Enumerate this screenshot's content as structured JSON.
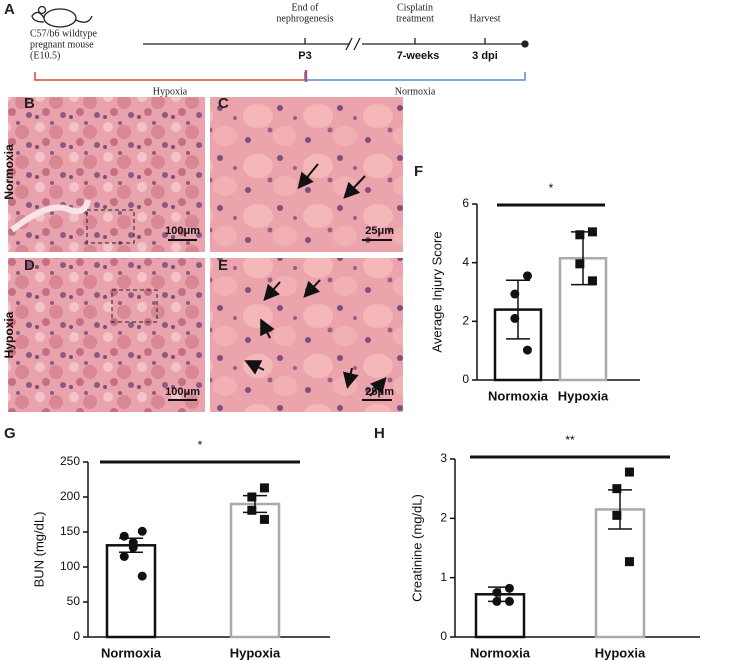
{
  "panel_labels": [
    "A",
    "B",
    "C",
    "D",
    "E",
    "F",
    "G",
    "H"
  ],
  "timeline": {
    "mouse_label": [
      "C57/b6 wildtype",
      "pregnant mouse",
      "(E10.5)"
    ],
    "events": [
      {
        "label": [
          "End of",
          "nephrogenesis"
        ],
        "time": "P3"
      },
      {
        "label": [
          "Cisplatin",
          "treatment"
        ],
        "time": "7-weeks"
      },
      {
        "label": [
          "Harvest"
        ],
        "time": "3 dpi"
      }
    ],
    "phases": [
      "Hypoxia",
      "Normoxia"
    ]
  },
  "micrographs": {
    "row_labels": [
      "Normoxia",
      "Hypoxia"
    ],
    "scale_bars": [
      "100μm",
      "25μm",
      "100μm",
      "25μm"
    ]
  },
  "chart_data": [
    {
      "type": "bar",
      "ylabel": "Average Injury Score",
      "annotation": "*",
      "categories": [
        "Normoxia",
        "Hypoxia"
      ],
      "values": [
        2.4,
        4.15
      ],
      "errors": [
        1.0,
        0.9
      ],
      "points": [
        [
          3.55,
          2.93,
          2.1,
          1.02
        ],
        [
          5.05,
          4.95,
          3.96,
          3.38
        ]
      ],
      "markers": [
        "circle",
        "square"
      ],
      "colors": [
        "#111111",
        "#aaaaaa"
      ],
      "ylim": [
        0,
        6
      ],
      "yticks": [
        0,
        2,
        4,
        6
      ]
    },
    {
      "type": "bar",
      "ylabel": "BUN (mg/dL)",
      "annotation": "*",
      "categories": [
        "Normoxia",
        "Hypoxia"
      ],
      "values": [
        131,
        190
      ],
      "errors": [
        10,
        12
      ],
      "points": [
        [
          151,
          144,
          135,
          128,
          115,
          87
        ],
        [
          213,
          200,
          181,
          168
        ]
      ],
      "markers": [
        "circle",
        "square"
      ],
      "colors": [
        "#111111",
        "#aaaaaa"
      ],
      "ylim": [
        0,
        250
      ],
      "yticks": [
        0,
        50,
        100,
        150,
        200,
        250
      ]
    },
    {
      "type": "bar",
      "ylabel": "Creatinine (mg/dL)",
      "annotation": "**",
      "categories": [
        "Normoxia",
        "Hypoxia"
      ],
      "values": [
        0.72,
        2.15
      ],
      "errors": [
        0.12,
        0.33
      ],
      "points": [
        [
          0.82,
          0.75,
          0.6,
          0.6
        ],
        [
          2.78,
          2.5,
          2.05,
          1.27
        ]
      ],
      "markers": [
        "circle",
        "square"
      ],
      "colors": [
        "#111111",
        "#aaaaaa"
      ],
      "ylim": [
        0,
        3
      ],
      "yticks": [
        0,
        1,
        2,
        3
      ]
    }
  ]
}
